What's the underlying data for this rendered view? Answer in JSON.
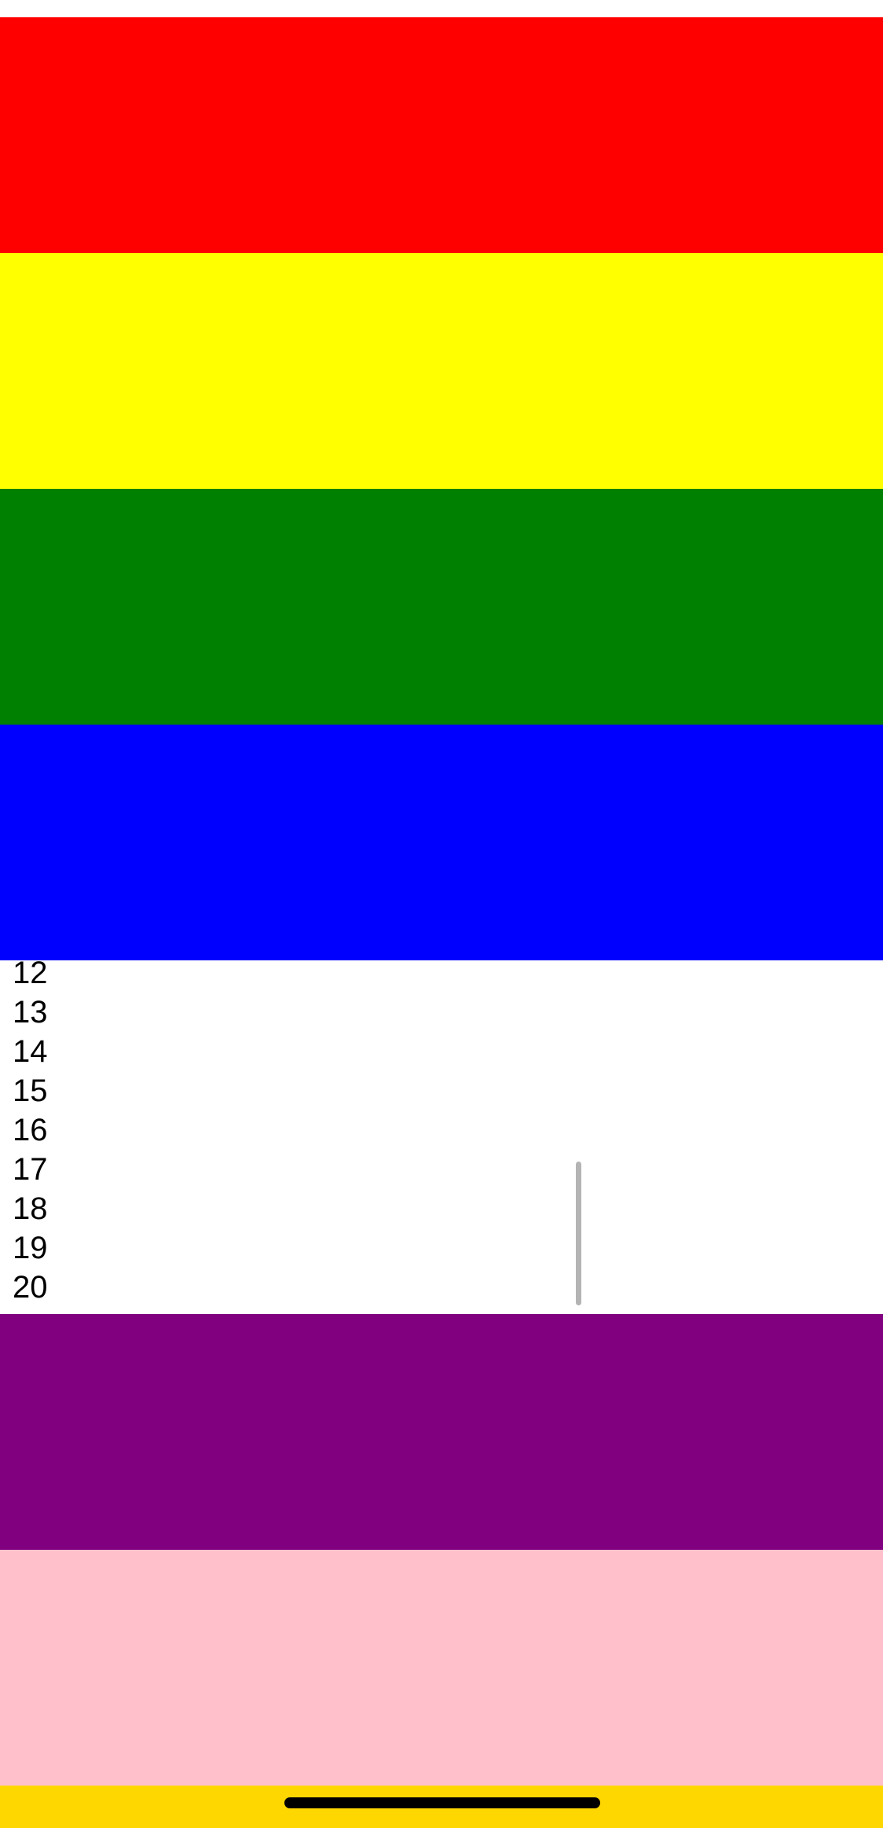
{
  "bands": {
    "red": "#ff0000",
    "yellow": "#ffff00",
    "green": "#008000",
    "blue": "#0000ff",
    "purple": "#800080",
    "pink": "#ffc0cb"
  },
  "bottom_bar_color": "#ffd700",
  "scroll_view": {
    "items": [
      "12",
      "13",
      "14",
      "15",
      "16",
      "17",
      "18",
      "19",
      "20"
    ],
    "indicator_color": "#b4b4b4"
  },
  "home_indicator_color": "#000000"
}
